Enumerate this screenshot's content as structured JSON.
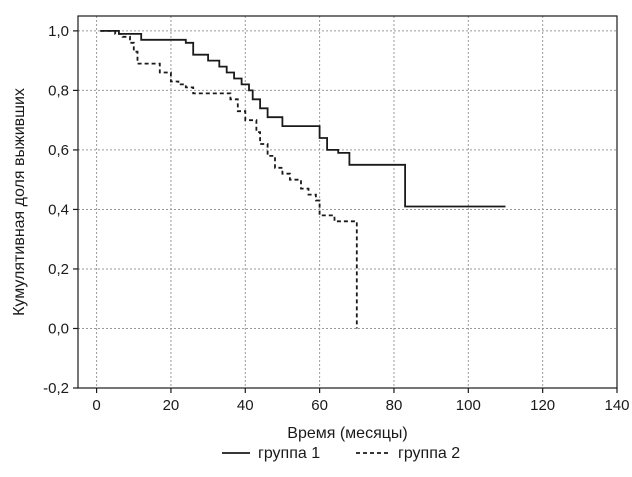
{
  "chart_data": {
    "type": "line",
    "step": true,
    "xlabel": "Время (месяцы)",
    "ylabel": "Кумулятивная доля выживших",
    "xlim": [
      -5,
      140
    ],
    "ylim": [
      -0.2,
      1.05
    ],
    "x_ticks": [
      0,
      20,
      40,
      60,
      80,
      100,
      120,
      140
    ],
    "x_tick_labels": [
      "0",
      "20",
      "40",
      "60",
      "80",
      "100",
      "120",
      "140"
    ],
    "y_ticks": [
      -0.2,
      0.0,
      0.2,
      0.4,
      0.6,
      0.8,
      1.0
    ],
    "y_tick_labels": [
      "-0,2",
      "0,0",
      "0,2",
      "0,4",
      "0,6",
      "0,8",
      "1,0"
    ],
    "grid": true,
    "legend_position": "bottom-center",
    "series": [
      {
        "name": "группа 1",
        "style": "solid",
        "color": "#1a1a1a",
        "x": [
          1,
          6,
          12,
          24,
          26,
          30,
          33,
          35,
          37,
          39,
          41,
          42,
          44,
          46,
          50,
          60,
          62,
          65,
          68,
          83,
          110
        ],
        "y": [
          1.0,
          0.99,
          0.97,
          0.96,
          0.92,
          0.9,
          0.88,
          0.86,
          0.84,
          0.82,
          0.8,
          0.77,
          0.74,
          0.71,
          0.68,
          0.64,
          0.6,
          0.59,
          0.55,
          0.41,
          0.41
        ]
      },
      {
        "name": "группа 2",
        "style": "dashed",
        "color": "#1a1a1a",
        "x": [
          1,
          5,
          7,
          9,
          10,
          11,
          17,
          20,
          22,
          24,
          26,
          36,
          38,
          40,
          43,
          44,
          46,
          48,
          50,
          52,
          55,
          57,
          59,
          60,
          64,
          68,
          70
        ],
        "y": [
          1.0,
          0.99,
          0.98,
          0.96,
          0.93,
          0.89,
          0.86,
          0.83,
          0.82,
          0.81,
          0.79,
          0.77,
          0.73,
          0.7,
          0.66,
          0.62,
          0.58,
          0.54,
          0.52,
          0.5,
          0.47,
          0.45,
          0.43,
          0.38,
          0.36,
          0.36,
          0.0
        ]
      }
    ]
  }
}
